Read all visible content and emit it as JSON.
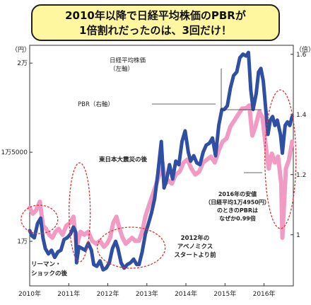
{
  "title": {
    "line1": "2010年以降で日経平均株価のPBRが",
    "line2": "1倍割れだったのは、3回だけ！"
  },
  "chart_data": {
    "type": "line",
    "left_axis": {
      "unit_label": "（円）",
      "range": [
        7500,
        21000
      ],
      "ticks": [
        {
          "value": 10000,
          "label": "1万"
        },
        {
          "value": 15000,
          "label": "1万5000"
        },
        {
          "value": 20000,
          "label": "2万"
        }
      ]
    },
    "right_axis": {
      "unit_label": "（倍）",
      "range": [
        0.83,
        1.63
      ],
      "ticks": [
        {
          "value": 1.0,
          "label": "1"
        },
        {
          "value": 1.2,
          "label": "1.2"
        },
        {
          "value": 1.4,
          "label": "1.4"
        },
        {
          "value": 1.6,
          "label": "1.6"
        }
      ]
    },
    "x_axis": {
      "range": [
        2010.0,
        2016.75
      ],
      "ticks": [
        {
          "value": 2010,
          "label": "2010年"
        },
        {
          "value": 2011,
          "label": "2011年"
        },
        {
          "value": 2012,
          "label": "2012年"
        },
        {
          "value": 2013,
          "label": "2013年"
        },
        {
          "value": 2014,
          "label": "2014年"
        },
        {
          "value": 2015,
          "label": "2015年"
        },
        {
          "value": 2016,
          "label": "2016年"
        }
      ]
    },
    "grid": false,
    "series": [
      {
        "name": "日経平均株価",
        "axis": "left",
        "color": "#2f4fa3",
        "points": [
          [
            2010.0,
            10600
          ],
          [
            2010.06,
            10300
          ],
          [
            2010.12,
            10200
          ],
          [
            2010.2,
            11000
          ],
          [
            2010.28,
            11300
          ],
          [
            2010.34,
            10200
          ],
          [
            2010.4,
            9600
          ],
          [
            2010.48,
            9300
          ],
          [
            2010.56,
            9500
          ],
          [
            2010.64,
            9100
          ],
          [
            2010.72,
            9400
          ],
          [
            2010.8,
            9500
          ],
          [
            2010.88,
            10100
          ],
          [
            2010.96,
            10200
          ],
          [
            2011.04,
            10400
          ],
          [
            2011.12,
            10800
          ],
          [
            2011.18,
            10500
          ],
          [
            2011.2,
            8800
          ],
          [
            2011.26,
            9700
          ],
          [
            2011.34,
            9600
          ],
          [
            2011.42,
            9500
          ],
          [
            2011.5,
            9900
          ],
          [
            2011.58,
            9500
          ],
          [
            2011.64,
            8700
          ],
          [
            2011.72,
            8600
          ],
          [
            2011.8,
            8900
          ],
          [
            2011.88,
            8400
          ],
          [
            2011.96,
            8500
          ],
          [
            2012.04,
            8800
          ],
          [
            2012.12,
            9600
          ],
          [
            2012.2,
            10000
          ],
          [
            2012.26,
            9600
          ],
          [
            2012.34,
            8800
          ],
          [
            2012.42,
            8500
          ],
          [
            2012.5,
            8700
          ],
          [
            2012.58,
            8800
          ],
          [
            2012.66,
            9000
          ],
          [
            2012.74,
            8700
          ],
          [
            2012.8,
            8700
          ],
          [
            2012.88,
            9400
          ],
          [
            2012.96,
            10400
          ],
          [
            2013.04,
            11000
          ],
          [
            2013.12,
            11600
          ],
          [
            2013.2,
            12400
          ],
          [
            2013.28,
            13800
          ],
          [
            2013.37,
            15600
          ],
          [
            2013.44,
            13000
          ],
          [
            2013.5,
            13400
          ],
          [
            2013.58,
            14300
          ],
          [
            2013.66,
            13500
          ],
          [
            2013.74,
            14500
          ],
          [
            2013.82,
            14300
          ],
          [
            2013.9,
            15600
          ],
          [
            2013.98,
            16200
          ],
          [
            2014.06,
            15000
          ],
          [
            2014.12,
            14500
          ],
          [
            2014.2,
            14800
          ],
          [
            2014.28,
            14400
          ],
          [
            2014.36,
            14300
          ],
          [
            2014.44,
            15000
          ],
          [
            2014.52,
            15400
          ],
          [
            2014.6,
            15500
          ],
          [
            2014.68,
            15800
          ],
          [
            2014.76,
            14800
          ],
          [
            2014.84,
            16500
          ],
          [
            2014.92,
            17400
          ],
          [
            2014.98,
            17400
          ],
          [
            2015.06,
            17600
          ],
          [
            2015.14,
            18600
          ],
          [
            2015.22,
            19300
          ],
          [
            2015.3,
            19500
          ],
          [
            2015.38,
            20300
          ],
          [
            2015.46,
            20500
          ],
          [
            2015.54,
            20400
          ],
          [
            2015.6,
            20600
          ],
          [
            2015.66,
            18500
          ],
          [
            2015.72,
            17400
          ],
          [
            2015.8,
            18300
          ],
          [
            2015.86,
            19500
          ],
          [
            2015.92,
            19700
          ],
          [
            2015.98,
            19000
          ],
          [
            2016.04,
            17500
          ],
          [
            2016.1,
            16000
          ],
          [
            2016.16,
            16800
          ],
          [
            2016.22,
            17000
          ],
          [
            2016.28,
            16500
          ],
          [
            2016.34,
            16800
          ],
          [
            2016.42,
            16000
          ],
          [
            2016.47,
            14950
          ],
          [
            2016.54,
            16500
          ],
          [
            2016.6,
            16700
          ],
          [
            2016.66,
            16500
          ],
          [
            2016.72,
            17000
          ]
        ]
      },
      {
        "name": "PBR（右軸）",
        "axis": "right",
        "color": "#f09ac4",
        "points": [
          [
            2010.0,
            1.09
          ],
          [
            2010.08,
            1.07
          ],
          [
            2010.16,
            1.08
          ],
          [
            2010.26,
            1.11
          ],
          [
            2010.34,
            1.03
          ],
          [
            2010.42,
            1.02
          ],
          [
            2010.5,
            1.0
          ],
          [
            2010.58,
            0.99
          ],
          [
            2010.66,
            1.01
          ],
          [
            2010.74,
            1.02
          ],
          [
            2010.84,
            1.0
          ],
          [
            2010.94,
            1.03
          ],
          [
            2011.04,
            1.04
          ],
          [
            2011.12,
            1.06
          ],
          [
            2011.2,
            0.96
          ],
          [
            2011.3,
            1.01
          ],
          [
            2011.4,
            1.0
          ],
          [
            2011.5,
            1.01
          ],
          [
            2011.6,
            0.98
          ],
          [
            2011.7,
            0.97
          ],
          [
            2011.8,
            0.98
          ],
          [
            2011.9,
            0.96
          ],
          [
            2011.98,
            0.97
          ],
          [
            2012.06,
            0.99
          ],
          [
            2012.14,
            1.04
          ],
          [
            2012.22,
            1.06
          ],
          [
            2012.3,
            1.02
          ],
          [
            2012.38,
            0.99
          ],
          [
            2012.46,
            0.97
          ],
          [
            2012.54,
            0.98
          ],
          [
            2012.62,
            0.99
          ],
          [
            2012.7,
            0.98
          ],
          [
            2012.8,
            0.98
          ],
          [
            2012.88,
            1.01
          ],
          [
            2012.96,
            1.06
          ],
          [
            2013.06,
            1.1
          ],
          [
            2013.14,
            1.13
          ],
          [
            2013.22,
            1.16
          ],
          [
            2013.32,
            1.2
          ],
          [
            2013.4,
            1.24
          ],
          [
            2013.48,
            1.17
          ],
          [
            2013.56,
            1.18
          ],
          [
            2013.64,
            1.17
          ],
          [
            2013.74,
            1.2
          ],
          [
            2013.84,
            1.21
          ],
          [
            2013.94,
            1.24
          ],
          [
            2014.04,
            1.25
          ],
          [
            2014.14,
            1.22
          ],
          [
            2014.24,
            1.2
          ],
          [
            2014.34,
            1.21
          ],
          [
            2014.44,
            1.24
          ],
          [
            2014.54,
            1.25
          ],
          [
            2014.64,
            1.26
          ],
          [
            2014.74,
            1.24
          ],
          [
            2014.84,
            1.28
          ],
          [
            2014.94,
            1.31
          ],
          [
            2015.04,
            1.32
          ],
          [
            2015.14,
            1.36
          ],
          [
            2015.24,
            1.38
          ],
          [
            2015.34,
            1.4
          ],
          [
            2015.44,
            1.42
          ],
          [
            2015.54,
            1.42
          ],
          [
            2015.62,
            1.43
          ],
          [
            2015.7,
            1.33
          ],
          [
            2015.78,
            1.36
          ],
          [
            2015.88,
            1.41
          ],
          [
            2015.96,
            1.39
          ],
          [
            2016.04,
            1.3
          ],
          [
            2016.12,
            1.22
          ],
          [
            2016.2,
            1.27
          ],
          [
            2016.28,
            1.24
          ],
          [
            2016.36,
            1.26
          ],
          [
            2016.44,
            1.17
          ],
          [
            2016.47,
            0.99
          ],
          [
            2016.56,
            1.22
          ],
          [
            2016.64,
            1.25
          ],
          [
            2016.72,
            1.31
          ]
        ]
      }
    ],
    "annotations": [
      {
        "text": "日経平均株価\n（左軸）",
        "points_to": "日経平均株価"
      },
      {
        "text": "PBR（右軸）",
        "points_to": "PBR（右軸）"
      },
      {
        "text": "東日本大震災の後",
        "x": 2011.25
      },
      {
        "text": "リーマン・\nショックの後",
        "x": 2010.2
      },
      {
        "text": "2012年の\nアベノミクス\nスタートより前",
        "x": 2012.9
      },
      {
        "text": "2016年の安値\n（日経平均1万4950円）\nのときのPBRは\nなぜか0.99倍",
        "x": 2016.47
      }
    ]
  }
}
